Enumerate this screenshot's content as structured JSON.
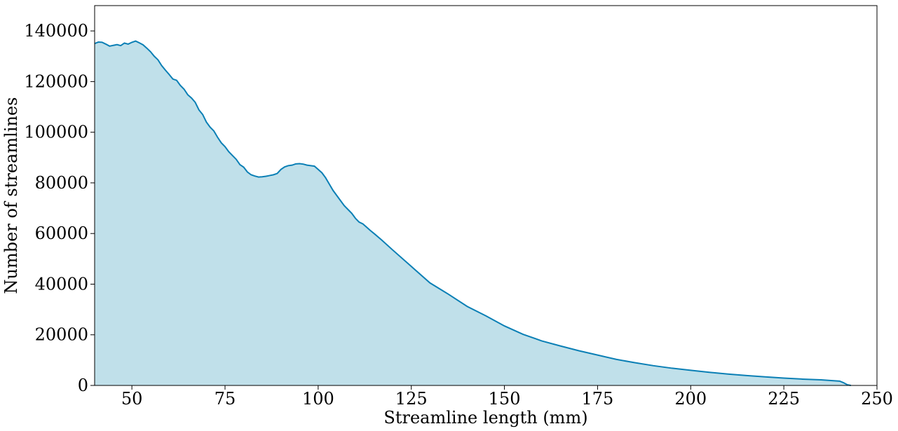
{
  "chart_data": {
    "type": "area",
    "title": "",
    "xlabel": "Streamline length (mm)",
    "ylabel": "Number of streamlines",
    "xlim": [
      40,
      250
    ],
    "ylim": [
      0,
      150000
    ],
    "x_ticks": [
      50,
      75,
      100,
      125,
      150,
      175,
      200,
      225,
      250
    ],
    "x_tick_labels": [
      "50",
      "75",
      "100",
      "125",
      "150",
      "175",
      "200",
      "225",
      "250"
    ],
    "y_ticks": [
      0,
      20000,
      40000,
      60000,
      80000,
      100000,
      120000,
      140000
    ],
    "y_tick_labels": [
      "0",
      "20000",
      "40000",
      "60000",
      "80000",
      "100000",
      "120000",
      "140000"
    ],
    "grid": false,
    "legend": "none",
    "colors": {
      "line": "#0a7fb5",
      "fill": "#c0e0ea"
    },
    "series": [
      {
        "x": [
          40,
          41,
          42,
          43,
          44,
          45,
          46,
          47,
          48,
          49,
          50,
          51,
          52,
          53,
          54,
          55,
          56,
          57,
          58,
          59,
          60,
          61,
          62,
          63,
          64,
          65,
          66,
          67,
          68,
          69,
          70,
          71,
          72,
          73,
          74,
          75,
          76,
          77,
          78,
          79,
          80,
          81,
          82,
          83,
          84,
          85,
          86,
          87,
          88,
          89,
          90,
          91,
          92,
          93,
          94,
          95,
          96,
          97,
          98,
          99,
          100,
          101,
          102,
          103,
          104,
          105,
          106,
          107,
          108,
          109,
          110,
          111,
          112,
          113,
          114,
          115,
          117,
          120,
          125,
          130,
          135,
          140,
          145,
          150,
          155,
          160,
          165,
          170,
          175,
          180,
          185,
          190,
          195,
          200,
          205,
          210,
          215,
          220,
          225,
          230,
          235,
          240,
          241,
          242,
          243
        ],
        "y": [
          135000,
          135600,
          135500,
          134800,
          134000,
          134300,
          134600,
          134200,
          135200,
          134800,
          135500,
          136000,
          135300,
          134500,
          133200,
          131800,
          130000,
          128600,
          126300,
          124500,
          122800,
          121000,
          120500,
          118500,
          117000,
          114800,
          113500,
          111800,
          108800,
          107000,
          104000,
          102000,
          100500,
          98000,
          95800,
          94300,
          92300,
          90800,
          89300,
          87200,
          86200,
          84300,
          83200,
          82700,
          82300,
          82400,
          82600,
          82900,
          83200,
          83700,
          85300,
          86300,
          86800,
          87000,
          87500,
          87600,
          87400,
          87000,
          86800,
          86600,
          85300,
          84000,
          82000,
          79500,
          77000,
          75000,
          73000,
          71000,
          69500,
          68000,
          66000,
          64500,
          63800,
          62500,
          61200,
          60000,
          57500,
          53500,
          47000,
          40500,
          36000,
          31200,
          27500,
          23500,
          20200,
          17600,
          15600,
          13700,
          12000,
          10300,
          9000,
          7800,
          6800,
          6000,
          5200,
          4500,
          3900,
          3400,
          2900,
          2500,
          2200,
          1700,
          1100,
          300,
          0
        ]
      }
    ]
  }
}
